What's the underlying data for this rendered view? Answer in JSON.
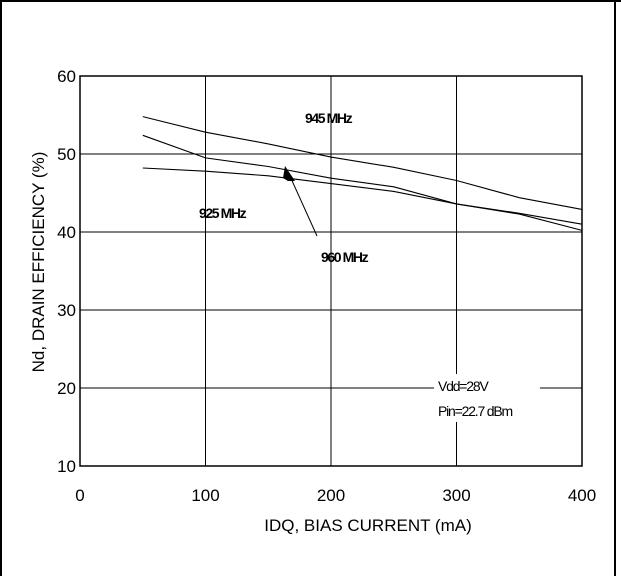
{
  "chart_data": {
    "type": "line",
    "title": "",
    "xlabel": "IDQ, BIAS CURRENT (mA)",
    "ylabel": "Nd, DRAIN EFFICIENCY (%)",
    "xlim": [
      0,
      400
    ],
    "ylim": [
      10,
      60
    ],
    "x_ticks": [
      "0",
      "100",
      "200",
      "300",
      "400"
    ],
    "y_ticks": [
      "10",
      "20",
      "30",
      "40",
      "50",
      "60"
    ],
    "grid": true,
    "series": [
      {
        "name": "945 MHz",
        "points": [
          [
            50,
            54.8
          ],
          [
            100,
            52.8
          ],
          [
            150,
            51.3
          ],
          [
            200,
            49.6
          ],
          [
            250,
            48.3
          ],
          [
            300,
            46.6
          ],
          [
            350,
            44.4
          ],
          [
            400,
            42.9
          ]
        ]
      },
      {
        "name": "925 MHz",
        "points": [
          [
            50,
            48.2
          ],
          [
            100,
            47.8
          ],
          [
            150,
            47.2
          ],
          [
            200,
            46.2
          ],
          [
            250,
            45.2
          ],
          [
            300,
            43.6
          ],
          [
            350,
            42.4
          ],
          [
            400,
            41.0
          ]
        ]
      },
      {
        "name": "960 MHz",
        "points": [
          [
            50,
            52.4
          ],
          [
            100,
            49.5
          ],
          [
            150,
            48.4
          ],
          [
            200,
            46.9
          ],
          [
            250,
            45.8
          ],
          [
            300,
            43.6
          ],
          [
            350,
            42.3
          ],
          [
            400,
            40.2
          ]
        ]
      }
    ],
    "annotations": {
      "label_945": "945 MHz",
      "label_925": "925 MHz",
      "label_960": "960 MHz",
      "vdd": "Vdd=28V",
      "pin": "Pin=22.7 dBm"
    }
  }
}
